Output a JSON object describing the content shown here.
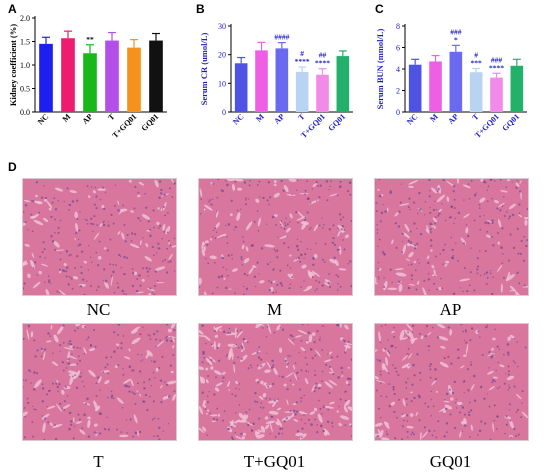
{
  "panels": {
    "a": "A",
    "b": "B",
    "c": "C",
    "d": "D"
  },
  "chart_data": [
    {
      "type": "bar",
      "panel": "A",
      "categories": [
        "NC",
        "M",
        "AP",
        "T",
        "T+GQ01",
        "GQ01"
      ],
      "values": [
        1.45,
        1.57,
        1.25,
        1.52,
        1.37,
        1.52
      ],
      "errors": [
        0.14,
        0.15,
        0.18,
        0.17,
        0.17,
        0.15
      ],
      "annotations": [
        "",
        "",
        "**",
        "",
        "",
        ""
      ],
      "colors": [
        "#1e1ef0",
        "#ee1c6e",
        "#18b818",
        "#b44ee8",
        "#f5921e",
        "#111111"
      ],
      "ylabel": "Kidney coefficient (%)",
      "ylim": [
        0,
        2.0
      ],
      "yticks": [
        "0.0",
        "0.5",
        "1.0",
        "1.5",
        "2.0"
      ],
      "tick_values": [
        0,
        0.5,
        1.0,
        1.5,
        2.0
      ],
      "label_color": "#000000"
    },
    {
      "type": "bar",
      "panel": "B",
      "categories": [
        "NC",
        "M",
        "AP",
        "T",
        "T+GQ01",
        "GQ01"
      ],
      "values": [
        17.0,
        21.5,
        22.2,
        14.0,
        13.0,
        19.5
      ],
      "errors": [
        2.0,
        2.8,
        2.0,
        1.7,
        2.1,
        1.8
      ],
      "annotations": [
        "",
        "",
        "####",
        "#\n****",
        "##\n****",
        ""
      ],
      "colors": [
        "#4e53e4",
        "#ef5fe6",
        "#6a6af0",
        "#b8d4f2",
        "#f28be8",
        "#22b06a"
      ],
      "ylabel": "Serum CR (umol/L)",
      "ylim": [
        0,
        30
      ],
      "yticks": [
        "0",
        "10",
        "20",
        "30"
      ],
      "tick_values": [
        0,
        10,
        20,
        30
      ],
      "label_color": "#1a1acc"
    },
    {
      "type": "bar",
      "panel": "C",
      "categories": [
        "NC",
        "M",
        "AP",
        "T",
        "T+GQ01",
        "GQ01"
      ],
      "values": [
        4.4,
        4.7,
        5.6,
        3.7,
        3.2,
        4.3
      ],
      "errors": [
        0.5,
        0.55,
        0.6,
        0.35,
        0.4,
        0.6
      ],
      "annotations": [
        "",
        "",
        "###\n*",
        "#\n***",
        "###\n****",
        ""
      ],
      "colors": [
        "#4e53e4",
        "#ef5fe6",
        "#6a6af0",
        "#b8d4f2",
        "#f28be8",
        "#22b06a"
      ],
      "ylabel": "Serum BUN (mmol/L)",
      "ylim": [
        0,
        8
      ],
      "yticks": [
        "0",
        "2",
        "4",
        "6",
        "8"
      ],
      "tick_values": [
        0,
        2,
        4,
        6,
        8
      ],
      "label_color": "#1a1acc"
    }
  ],
  "histology": {
    "labels": [
      "NC",
      "M",
      "AP",
      "T",
      "T+GQ01",
      "GQ01"
    ],
    "tissue_color": "#d8769e",
    "background_color": "#f0c3d6"
  }
}
